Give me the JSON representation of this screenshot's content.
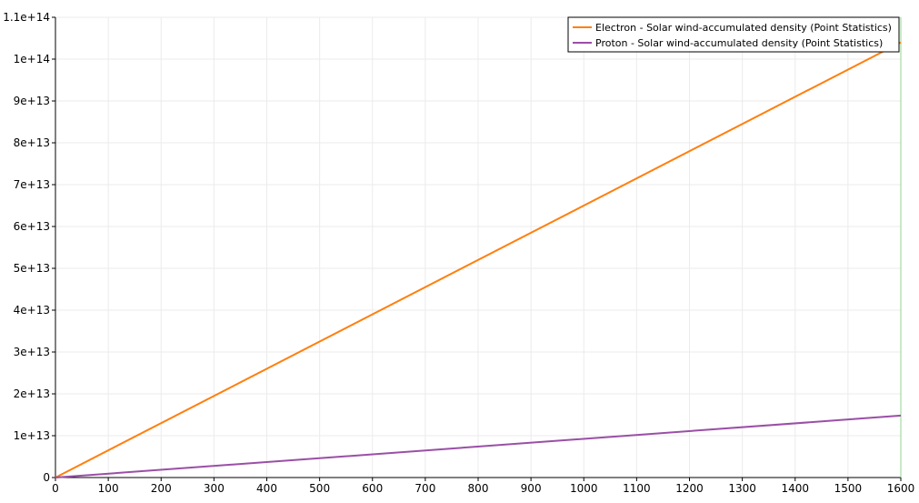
{
  "chart_data": {
    "type": "line",
    "title": "",
    "xlabel": "",
    "ylabel": "",
    "xlim": [
      0,
      1600
    ],
    "ylim": [
      0,
      110000000000000
    ],
    "grid": true,
    "legend_position": "top-right",
    "x_ticks": [
      0,
      100,
      200,
      300,
      400,
      500,
      600,
      700,
      800,
      900,
      1000,
      1100,
      1200,
      1300,
      1400,
      1500,
      1600
    ],
    "x_tick_labels": [
      "0",
      "100",
      "200",
      "300",
      "400",
      "500",
      "600",
      "700",
      "800",
      "900",
      "1000",
      "1100",
      "1200",
      "1300",
      "1400",
      "1500",
      "1600"
    ],
    "y_ticks": [
      0,
      10000000000000,
      20000000000000,
      30000000000000,
      40000000000000,
      50000000000000,
      60000000000000,
      70000000000000,
      80000000000000,
      90000000000000,
      100000000000000,
      110000000000000
    ],
    "y_tick_labels": [
      "0",
      "1e+13",
      "2e+13",
      "3e+13",
      "4e+13",
      "5e+13",
      "6e+13",
      "7e+13",
      "8e+13",
      "9e+13",
      "1e+14",
      "1.1e+14"
    ],
    "vertical_marker": {
      "x": 1600,
      "color": "#8fd48f"
    },
    "series": [
      {
        "name": "Electron - Solar wind-accumulated density (Point Statistics)",
        "color": "#ff7f0e",
        "x": [
          0,
          1600
        ],
        "y": [
          0,
          104000000000000
        ]
      },
      {
        "name": "Proton - Solar wind-accumulated density (Point Statistics)",
        "color": "#9a4fa6",
        "x": [
          0,
          1600
        ],
        "y": [
          0,
          14800000000000
        ]
      }
    ]
  }
}
